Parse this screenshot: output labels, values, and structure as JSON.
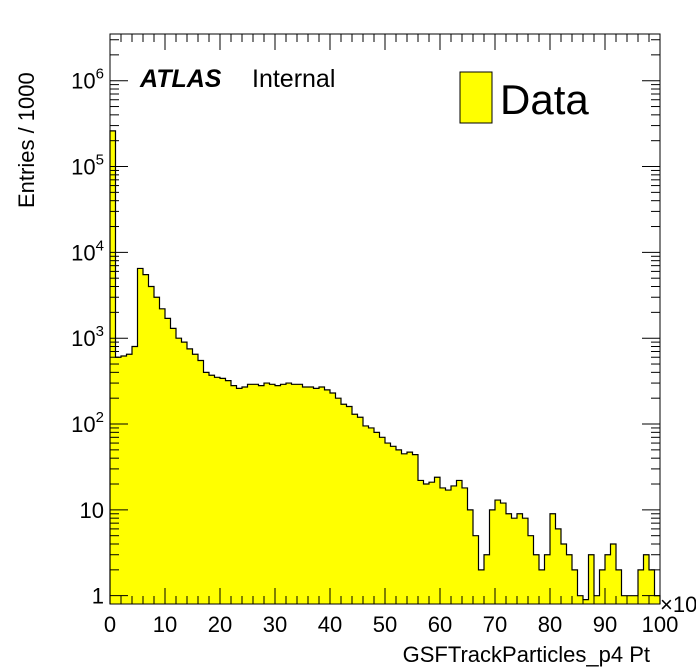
{
  "chart_data": {
    "type": "bar",
    "histogram": true,
    "xlabel": "GSFTrackParticles_p4 Pt",
    "ylabel": "Entries / 1000",
    "x_scale_label": "×10",
    "ylog": true,
    "xlim": [
      0,
      100
    ],
    "ylim": [
      0.8,
      3500000
    ],
    "bin_width": 1,
    "x_tick_labels": [
      "0",
      "10",
      "20",
      "30",
      "40",
      "50",
      "60",
      "70",
      "80",
      "90",
      "100"
    ],
    "y_tick_labels": [
      {
        "base": "1",
        "exp": ""
      },
      {
        "base": "10",
        "exp": ""
      },
      {
        "base": "10",
        "exp": "2"
      },
      {
        "base": "10",
        "exp": "3"
      },
      {
        "base": "10",
        "exp": "4"
      },
      {
        "base": "10",
        "exp": "5"
      },
      {
        "base": "10",
        "exp": "6"
      }
    ],
    "fill_color": "#ffff00",
    "line_color": "#000000",
    "series": [
      {
        "name": "Data",
        "values": [
          260000,
          600,
          620,
          650,
          800,
          6500,
          5500,
          4000,
          3000,
          2200,
          1700,
          1300,
          1000,
          900,
          750,
          650,
          550,
          400,
          370,
          350,
          340,
          320,
          280,
          260,
          270,
          290,
          290,
          280,
          300,
          290,
          280,
          290,
          300,
          290,
          290,
          270,
          270,
          260,
          270,
          250,
          230,
          200,
          170,
          160,
          130,
          120,
          95,
          90,
          80,
          70,
          60,
          55,
          50,
          45,
          47,
          44,
          22,
          20,
          21,
          24,
          18,
          17,
          19,
          22,
          18,
          10,
          5,
          2,
          3,
          10,
          13,
          12,
          9,
          8,
          9,
          8,
          5,
          3,
          2,
          3,
          9,
          6,
          4,
          3,
          2,
          1,
          0.9,
          3,
          1,
          2,
          3,
          4,
          2,
          1,
          1,
          1,
          2,
          3,
          2,
          1
        ]
      }
    ]
  },
  "header": {
    "experiment": "ATLAS",
    "status": "Internal"
  },
  "legend": {
    "entries": [
      {
        "label": "Data",
        "color": "#ffff00"
      }
    ],
    "placement": "top-right"
  }
}
